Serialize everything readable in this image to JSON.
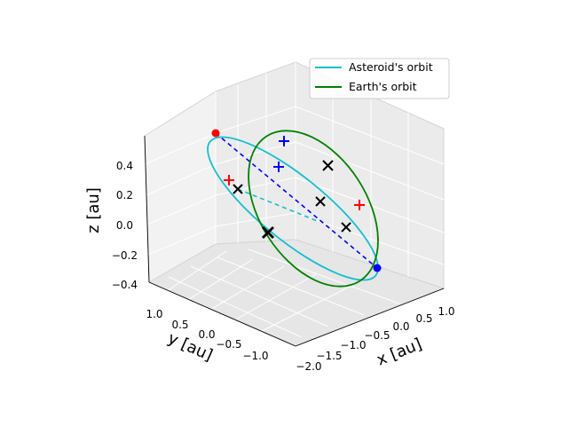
{
  "chart_data": {
    "type": "line",
    "projection": "3d",
    "grid": true,
    "legend_position": "top-right",
    "axes": {
      "x": {
        "label": "x [au]",
        "ticks": [
          "1.0",
          "0.5",
          "0.0",
          "−0.5",
          "−1.0",
          "−1.5",
          "−2.0"
        ]
      },
      "y": {
        "label": "y [au]",
        "ticks": [
          "1.0",
          "0.5",
          "0.0",
          "−0.5",
          "−1.0"
        ]
      },
      "z": {
        "label": "z [au]",
        "ticks": [
          "0.4",
          "0.2",
          "0.0",
          "−0.2",
          "−0.4"
        ]
      }
    },
    "series": [
      {
        "name": "Asteroid's orbit",
        "color": "#17becf",
        "style": "solid"
      },
      {
        "name": "Earth's orbit",
        "color": "#008000",
        "style": "solid"
      }
    ],
    "colors": {
      "node_line": "#0000ff",
      "perihelion_line": "#17becf",
      "apsis_point": "#ff0000",
      "node_point": "#0000ff",
      "plus_red": "#ff0000",
      "plus_blue": "#0000ff",
      "x_marker": "#000000"
    }
  }
}
